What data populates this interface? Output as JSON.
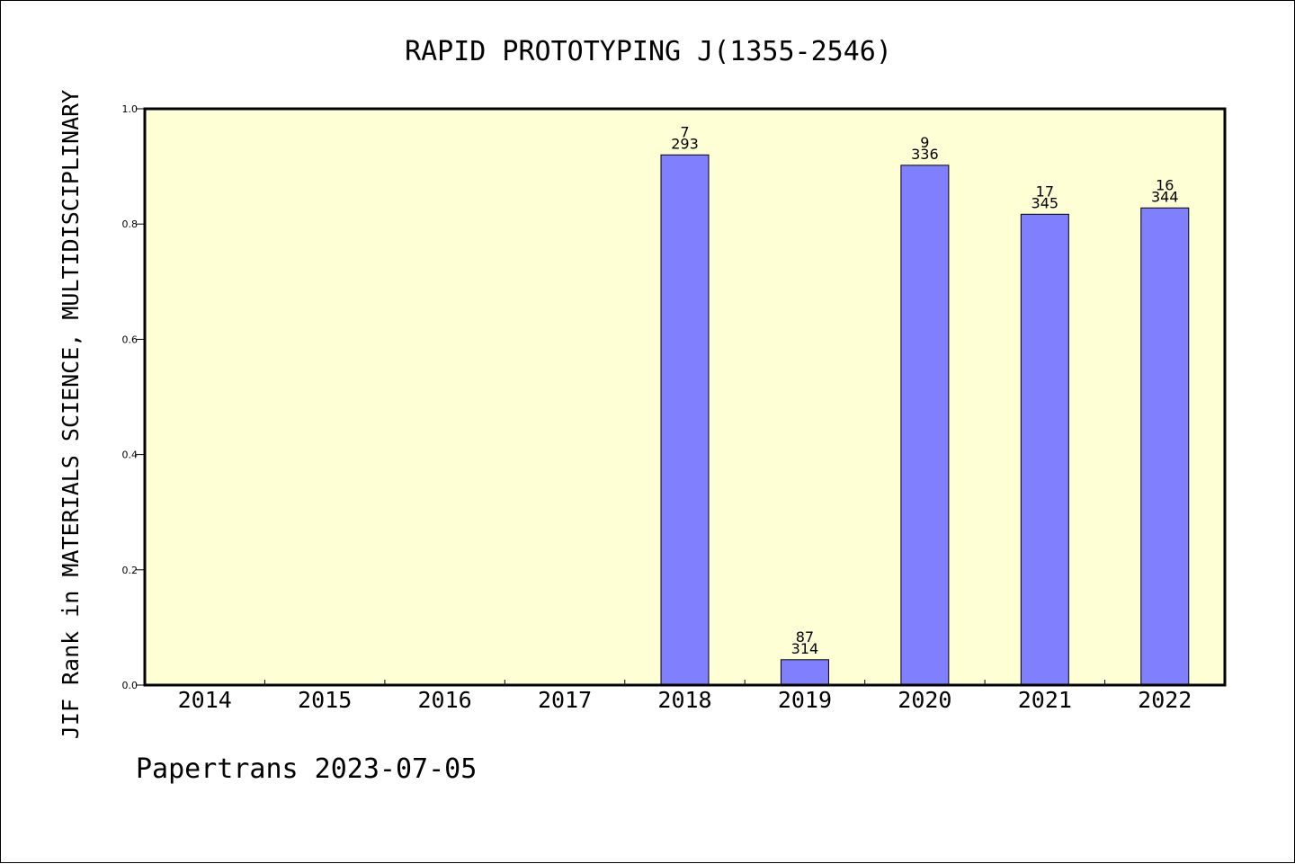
{
  "chart_data": {
    "type": "bar",
    "title": "RAPID PROTOTYPING J(1355-2546)",
    "ylabel": "JIF Rank in MATERIALS SCIENCE, MULTIDISCIPLINARY",
    "xlabel": "",
    "ylim": [
      0.0,
      1.0
    ],
    "yticks": [
      "0.0",
      "0.2",
      "0.4",
      "0.6",
      "0.8",
      "1.0"
    ],
    "categories": [
      "2014",
      "2015",
      "2016",
      "2017",
      "2018",
      "2019",
      "2020",
      "2021",
      "2022"
    ],
    "values": [
      null,
      null,
      null,
      null,
      0.92,
      0.044,
      0.902,
      0.817,
      0.828
    ],
    "rank": [
      null,
      null,
      null,
      null,
      "7",
      "87",
      "9",
      "17",
      "16"
    ],
    "total": [
      null,
      null,
      null,
      null,
      "293",
      "314",
      "336",
      "345",
      "344"
    ],
    "grid": false,
    "legend": "none",
    "colors": {
      "plot_background": "#ffffd5",
      "bar_fill": "#8080ff",
      "bar_stroke": "#000000"
    }
  },
  "footer": {
    "credit": "Papertrans 2023-07-05"
  }
}
